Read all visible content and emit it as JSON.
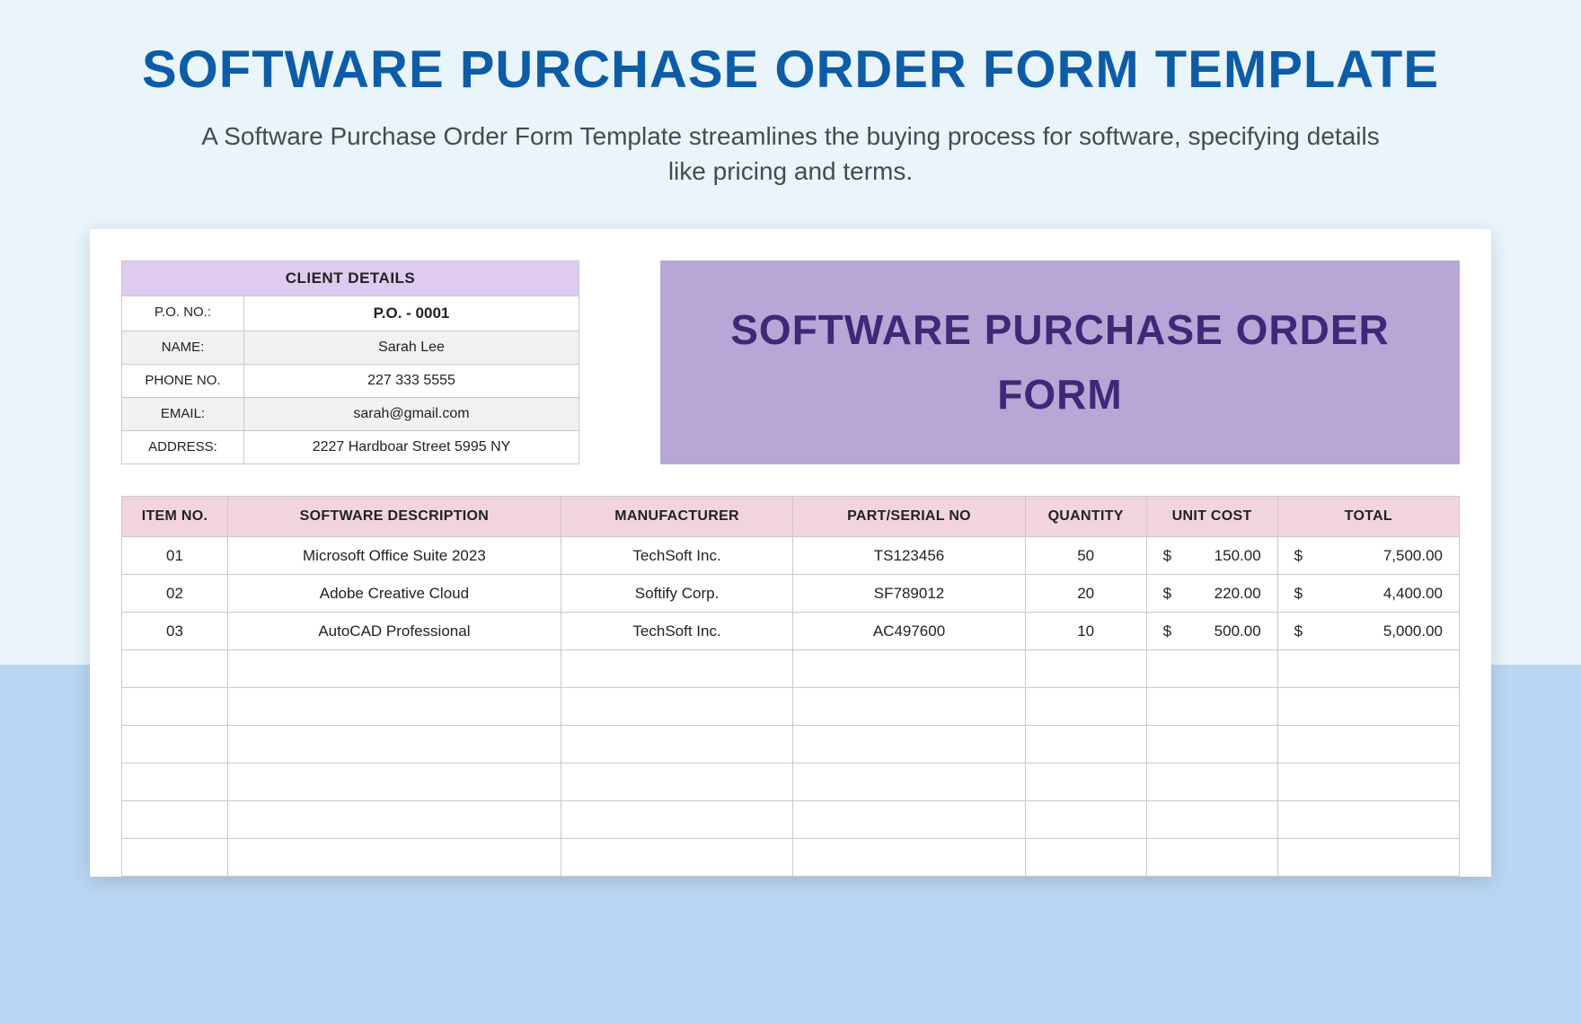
{
  "header": {
    "title": "SOFTWARE PURCHASE ORDER FORM TEMPLATE",
    "description": "A Software Purchase Order Form Template streamlines the buying process for software, specifying details like pricing and terms."
  },
  "colors": {
    "page_bg": "#e9f5fb",
    "bottom_bg": "#b9d6f2",
    "title_color": "#0d5ca8",
    "card_bg": "#ffffff",
    "client_header_bg": "#e0cbf0",
    "alt_row_bg": "#f1f1f1",
    "badge_bg": "#b8a7d6",
    "badge_text": "#3e2878",
    "table_header_bg": "#f2d4df",
    "border": "#c9c9c9"
  },
  "client": {
    "header": "CLIENT DETAILS",
    "rows": [
      {
        "label": "P.O. NO.:",
        "value": "P.O. - 0001",
        "bold": true
      },
      {
        "label": "NAME:",
        "value": "Sarah Lee"
      },
      {
        "label": "PHONE NO.",
        "value": "227 333 5555"
      },
      {
        "label": "EMAIL:",
        "value": "sarah@gmail.com"
      },
      {
        "label": "ADDRESS:",
        "value": "2227 Hardboar Street 5995 NY"
      }
    ]
  },
  "badge": {
    "text": "SOFTWARE PURCHASE ORDER FORM"
  },
  "table": {
    "columns": [
      "ITEM NO.",
      "SOFTWARE DESCRIPTION",
      "MANUFACTURER",
      "PART/SERIAL NO",
      "QUANTITY",
      "UNIT COST",
      "TOTAL"
    ],
    "rows": [
      {
        "item": "01",
        "desc": "Microsoft Office Suite 2023",
        "manu": "TechSoft Inc.",
        "serial": "TS123456",
        "qty": "50",
        "unit": "150.00",
        "total": "7,500.00"
      },
      {
        "item": "02",
        "desc": "Adobe Creative Cloud",
        "manu": "Softify Corp.",
        "serial": "SF789012",
        "qty": "20",
        "unit": "220.00",
        "total": "4,400.00"
      },
      {
        "item": "03",
        "desc": "AutoCAD Professional",
        "manu": "TechSoft Inc.",
        "serial": "AC497600",
        "qty": "10",
        "unit": "500.00",
        "total": "5,000.00"
      }
    ],
    "empty_rows": 6,
    "currency": "$"
  }
}
